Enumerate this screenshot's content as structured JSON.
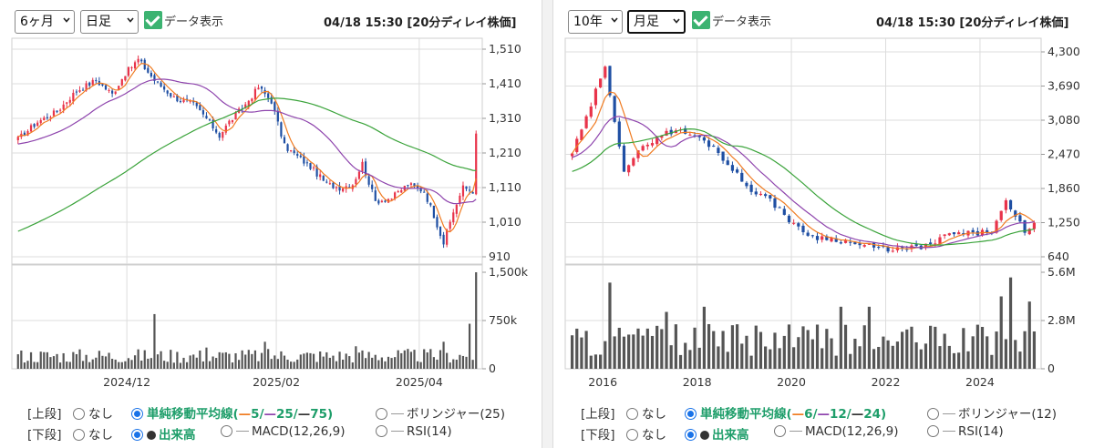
{
  "left": {
    "period": "6ヶ月",
    "interval": "日足",
    "data_display": "データ表示",
    "timestamp": "04/18 15:30 [20分ディレイ株価]",
    "legend": {
      "upper_label": "[上段]",
      "none": "なし",
      "sma_label": "単純移動平均線(",
      "sma_a": "5/",
      "sma_b": "25/",
      "sma_c": "75)",
      "bollinger": "ボリンジャー(25)",
      "lower_label": "[下段]",
      "volume": "出来高",
      "macd": "MACD(12,26,9)",
      "rsi": "RSI(14)"
    }
  },
  "right": {
    "period": "10年",
    "interval": "月足",
    "data_display": "データ表示",
    "timestamp": "04/18 15:30 [20分ディレイ株価]",
    "legend": {
      "upper_label": "[上段]",
      "none": "なし",
      "sma_label": "単純移動平均線(",
      "sma_a": "6/",
      "sma_b": "12/",
      "sma_c": "24)",
      "bollinger": "ボリンジャー(12)",
      "lower_label": "[下段]",
      "volume": "出来高",
      "macd": "MACD(12,26,9)",
      "rsi": "RSI(14)"
    }
  },
  "colors": {
    "up": "#e8334a",
    "down": "#1f4fa3",
    "ma_short": "#f07b21",
    "ma_mid": "#8e44ad",
    "ma_long": "#3aa33a",
    "volume": "#555555",
    "grid": "#dddddd"
  },
  "chart_data": [
    {
      "type": "candlestick",
      "panel": "left",
      "x_ticks": [
        "2024/12",
        "2025/02",
        "2025/04"
      ],
      "y_ticks": [
        "1,510",
        "1,410",
        "1,310",
        "1,210",
        "1,110",
        "1,010",
        "910"
      ],
      "ylim": [
        910,
        1510
      ],
      "volume_ticks": [
        "1,500k",
        "750k",
        "0"
      ],
      "volume_ylim": [
        0,
        1500
      ],
      "volume_unit": "k",
      "keypoints_close": [
        {
          "i": 0,
          "v": 1250
        },
        {
          "i": 6,
          "v": 1300
        },
        {
          "i": 12,
          "v": 1330
        },
        {
          "i": 18,
          "v": 1390
        },
        {
          "i": 24,
          "v": 1420
        },
        {
          "i": 29,
          "v": 1380
        },
        {
          "i": 33,
          "v": 1440
        },
        {
          "i": 37,
          "v": 1480
        },
        {
          "i": 42,
          "v": 1420
        },
        {
          "i": 48,
          "v": 1370
        },
        {
          "i": 54,
          "v": 1350
        },
        {
          "i": 58,
          "v": 1310
        },
        {
          "i": 62,
          "v": 1260
        },
        {
          "i": 65,
          "v": 1300
        },
        {
          "i": 70,
          "v": 1350
        },
        {
          "i": 74,
          "v": 1400
        },
        {
          "i": 78,
          "v": 1360
        },
        {
          "i": 82,
          "v": 1230
        },
        {
          "i": 86,
          "v": 1200
        },
        {
          "i": 90,
          "v": 1170
        },
        {
          "i": 95,
          "v": 1120
        },
        {
          "i": 99,
          "v": 1110
        },
        {
          "i": 103,
          "v": 1120
        },
        {
          "i": 106,
          "v": 1180
        },
        {
          "i": 110,
          "v": 1070
        },
        {
          "i": 115,
          "v": 1080
        },
        {
          "i": 120,
          "v": 1120
        },
        {
          "i": 125,
          "v": 1100
        },
        {
          "i": 128,
          "v": 1030
        },
        {
          "i": 131,
          "v": 950
        },
        {
          "i": 134,
          "v": 1040
        },
        {
          "i": 137,
          "v": 1110
        },
        {
          "i": 140,
          "v": 1100
        },
        {
          "i": 141,
          "v": 1260
        }
      ],
      "count": 142,
      "ma_windows": [
        5,
        25,
        75
      ],
      "ma_long_prewarm": [
        960,
        1000
      ],
      "volume_base": 250,
      "volume_spikes": [
        {
          "i": 42,
          "v": 850
        },
        {
          "i": 58,
          "v": 330
        },
        {
          "i": 76,
          "v": 420
        },
        {
          "i": 104,
          "v": 350
        },
        {
          "i": 131,
          "v": 420
        },
        {
          "i": 139,
          "v": 700
        },
        {
          "i": 141,
          "v": 1500
        }
      ]
    },
    {
      "type": "candlestick",
      "panel": "right",
      "x_ticks": [
        "2016",
        "2018",
        "2020",
        "2022",
        "2024"
      ],
      "y_ticks": [
        "4,300",
        "3,690",
        "3,080",
        "2,470",
        "1,860",
        "1,250",
        "640"
      ],
      "ylim": [
        640,
        4300
      ],
      "volume_ticks": [
        "5.6M",
        "2.8M",
        "0"
      ],
      "volume_ylim": [
        0,
        5.6
      ],
      "volume_unit": "M",
      "keypoints_close": [
        {
          "i": 0,
          "v": 2500
        },
        {
          "i": 3,
          "v": 3100
        },
        {
          "i": 5,
          "v": 3600
        },
        {
          "i": 7,
          "v": 4000
        },
        {
          "i": 9,
          "v": 3100
        },
        {
          "i": 11,
          "v": 2200
        },
        {
          "i": 14,
          "v": 2500
        },
        {
          "i": 18,
          "v": 2800
        },
        {
          "i": 22,
          "v": 2900
        },
        {
          "i": 26,
          "v": 2800
        },
        {
          "i": 30,
          "v": 2600
        },
        {
          "i": 34,
          "v": 2200
        },
        {
          "i": 37,
          "v": 1900
        },
        {
          "i": 41,
          "v": 1700
        },
        {
          "i": 44,
          "v": 1500
        },
        {
          "i": 47,
          "v": 1200
        },
        {
          "i": 51,
          "v": 1000
        },
        {
          "i": 56,
          "v": 950
        },
        {
          "i": 61,
          "v": 850
        },
        {
          "i": 66,
          "v": 780
        },
        {
          "i": 71,
          "v": 780
        },
        {
          "i": 76,
          "v": 850
        },
        {
          "i": 80,
          "v": 1050
        },
        {
          "i": 85,
          "v": 1050
        },
        {
          "i": 89,
          "v": 1100
        },
        {
          "i": 92,
          "v": 1600
        },
        {
          "i": 94,
          "v": 1350
        },
        {
          "i": 96,
          "v": 1100
        },
        {
          "i": 98,
          "v": 1250
        }
      ],
      "count": 99,
      "ma_windows": [
        6,
        12,
        24
      ],
      "ma_long_prewarm": [
        2000,
        2300
      ],
      "volume_base": 2.1,
      "volume_spikes": [
        {
          "i": 8,
          "v": 5.0
        },
        {
          "i": 20,
          "v": 3.3
        },
        {
          "i": 28,
          "v": 3.6
        },
        {
          "i": 57,
          "v": 3.6
        },
        {
          "i": 63,
          "v": 3.6
        },
        {
          "i": 91,
          "v": 4.2
        },
        {
          "i": 93,
          "v": 5.3
        },
        {
          "i": 97,
          "v": 3.9
        }
      ]
    }
  ]
}
